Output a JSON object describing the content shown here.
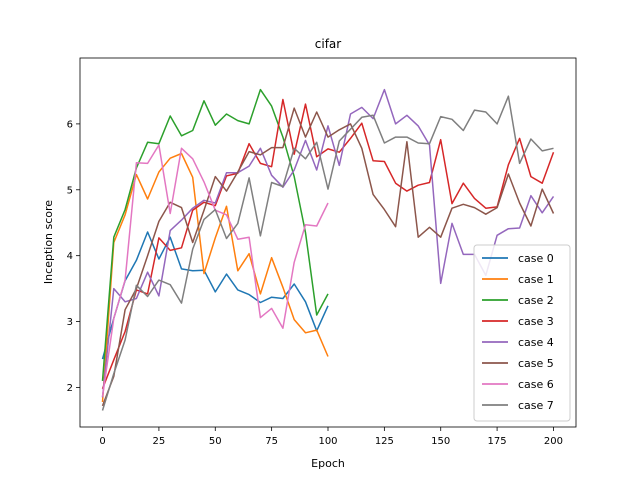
{
  "chart_data": {
    "type": "line",
    "title": "cifar",
    "xlabel": "Epoch",
    "ylabel": "Inception score",
    "xlim": [
      -10,
      210
    ],
    "ylim": [
      1.4,
      7.0
    ],
    "xticks": [
      0,
      25,
      50,
      75,
      100,
      125,
      150,
      175,
      200
    ],
    "yticks": [
      2,
      3,
      4,
      5,
      6
    ],
    "legend_position": "lower-right",
    "grid": false,
    "series": [
      {
        "name": "case 0",
        "color": "#1f77b4",
        "x": [
          0,
          5,
          10,
          15,
          20,
          25,
          30,
          35,
          40,
          45,
          50,
          55,
          60,
          65,
          70,
          75,
          80,
          85,
          90,
          95,
          100
        ],
        "y": [
          2.43,
          3.05,
          3.62,
          3.93,
          4.36,
          3.95,
          4.28,
          3.8,
          3.77,
          3.78,
          3.45,
          3.72,
          3.48,
          3.41,
          3.29,
          3.37,
          3.35,
          3.57,
          3.3,
          2.86,
          3.24
        ]
      },
      {
        "name": "case 1",
        "color": "#ff7f0e",
        "x": [
          0,
          5,
          10,
          15,
          20,
          25,
          30,
          35,
          40,
          45,
          50,
          55,
          60,
          65,
          70,
          75,
          80,
          85,
          90,
          95,
          100
        ],
        "y": [
          1.78,
          4.2,
          4.62,
          5.23,
          4.86,
          5.27,
          5.48,
          5.55,
          5.19,
          3.73,
          4.27,
          4.75,
          3.77,
          4.03,
          3.42,
          3.97,
          3.52,
          3.03,
          2.83,
          2.87,
          2.47
        ]
      },
      {
        "name": "case 2",
        "color": "#2ca02c",
        "x": [
          0,
          5,
          10,
          15,
          20,
          25,
          30,
          35,
          40,
          45,
          50,
          55,
          60,
          65,
          70,
          75,
          80,
          85,
          90,
          95,
          100
        ],
        "y": [
          2.1,
          4.28,
          4.7,
          5.33,
          5.72,
          5.7,
          6.12,
          5.82,
          5.9,
          6.35,
          5.98,
          6.15,
          6.05,
          6.0,
          6.52,
          6.27,
          5.8,
          5.2,
          4.35,
          3.1,
          3.42
        ]
      },
      {
        "name": "case 3",
        "color": "#d62728",
        "x": [
          0,
          5,
          10,
          15,
          20,
          25,
          30,
          35,
          40,
          45,
          50,
          55,
          60,
          65,
          70,
          75,
          80,
          85,
          90,
          95,
          100,
          105,
          110,
          115,
          120,
          125,
          130,
          135,
          140,
          145,
          150,
          155,
          160,
          165,
          170,
          175,
          180,
          185,
          190,
          195,
          200
        ],
        "y": [
          1.98,
          2.42,
          2.85,
          3.48,
          3.42,
          4.27,
          4.08,
          4.12,
          4.69,
          4.81,
          4.76,
          5.21,
          5.25,
          5.7,
          5.4,
          5.35,
          6.37,
          5.54,
          6.3,
          5.5,
          5.62,
          5.57,
          5.78,
          6.01,
          5.44,
          5.43,
          5.1,
          4.98,
          5.07,
          5.11,
          5.76,
          4.79,
          5.1,
          4.87,
          4.72,
          4.74,
          5.38,
          5.78,
          5.2,
          5.1,
          5.57
        ]
      },
      {
        "name": "case 4",
        "color": "#9467bd",
        "x": [
          0,
          5,
          10,
          15,
          20,
          25,
          30,
          35,
          40,
          45,
          50,
          55,
          60,
          65,
          70,
          75,
          80,
          85,
          90,
          95,
          100,
          105,
          110,
          115,
          120,
          125,
          130,
          135,
          140,
          145,
          150,
          155,
          160,
          165,
          170,
          175,
          180,
          185,
          190,
          195,
          200
        ],
        "y": [
          1.85,
          3.5,
          3.3,
          3.35,
          3.75,
          3.39,
          4.38,
          4.54,
          4.72,
          4.84,
          4.8,
          5.26,
          5.26,
          5.36,
          5.63,
          5.22,
          5.04,
          5.3,
          5.75,
          5.3,
          5.97,
          5.37,
          6.15,
          6.25,
          6.08,
          6.52,
          6.0,
          6.13,
          5.97,
          5.68,
          3.58,
          4.49,
          4.02,
          4.02,
          3.7,
          4.31,
          4.41,
          4.42,
          4.91,
          4.65,
          4.9
        ]
      },
      {
        "name": "case 5",
        "color": "#8c564b",
        "x": [
          0,
          5,
          10,
          15,
          20,
          25,
          30,
          35,
          40,
          45,
          50,
          55,
          60,
          65,
          70,
          75,
          80,
          85,
          90,
          95,
          100,
          105,
          110,
          115,
          120,
          125,
          130,
          135,
          140,
          145,
          150,
          155,
          160,
          165,
          170,
          175,
          180,
          185,
          190,
          195,
          200
        ],
        "y": [
          1.72,
          2.17,
          3.18,
          3.5,
          4.0,
          4.52,
          4.81,
          4.73,
          4.2,
          4.69,
          5.2,
          4.98,
          5.27,
          5.58,
          5.53,
          5.64,
          5.64,
          6.24,
          5.8,
          6.18,
          5.8,
          5.91,
          6.0,
          5.63,
          4.93,
          4.7,
          4.44,
          5.73,
          4.28,
          4.43,
          4.28,
          4.72,
          4.78,
          4.73,
          4.63,
          4.73,
          5.24,
          4.8,
          4.45,
          5.01,
          4.64
        ]
      },
      {
        "name": "case 6",
        "color": "#e377c2",
        "x": [
          0,
          5,
          10,
          15,
          20,
          25,
          30,
          35,
          40,
          45,
          50,
          55,
          60,
          65,
          70,
          75,
          80,
          85,
          90,
          95,
          100
        ],
        "y": [
          1.86,
          3.05,
          3.63,
          5.41,
          5.4,
          5.68,
          4.64,
          5.63,
          5.47,
          5.12,
          4.69,
          4.62,
          4.25,
          4.28,
          3.06,
          3.2,
          2.9,
          3.9,
          4.47,
          4.45,
          4.8
        ]
      },
      {
        "name": "case 7",
        "color": "#7f7f7f",
        "x": [
          0,
          5,
          10,
          15,
          20,
          25,
          30,
          35,
          40,
          45,
          50,
          55,
          60,
          65,
          70,
          75,
          80,
          85,
          90,
          95,
          100,
          105,
          110,
          115,
          120,
          125,
          130,
          135,
          140,
          145,
          150,
          155,
          160,
          165,
          170,
          175,
          180,
          185,
          190,
          195,
          200
        ],
        "y": [
          1.65,
          2.21,
          2.72,
          3.55,
          3.38,
          3.63,
          3.56,
          3.28,
          4.1,
          4.55,
          4.7,
          4.26,
          4.49,
          5.18,
          4.3,
          5.11,
          5.05,
          5.63,
          5.47,
          5.72,
          5.01,
          5.74,
          5.92,
          6.1,
          6.13,
          5.71,
          5.8,
          5.8,
          5.71,
          5.7,
          6.11,
          6.07,
          5.9,
          6.21,
          6.18,
          6.0,
          6.42,
          5.4,
          5.77,
          5.59,
          5.63
        ]
      }
    ]
  }
}
